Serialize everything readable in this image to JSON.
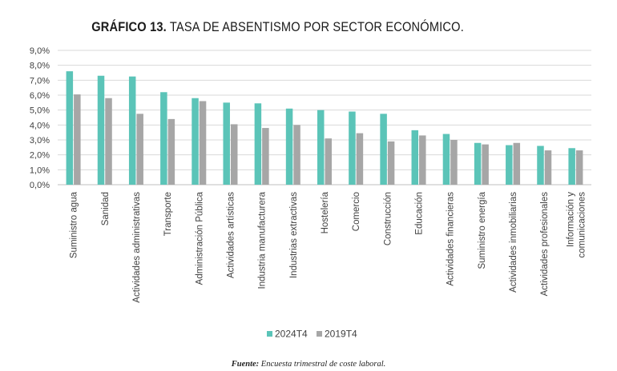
{
  "title_bold": "GRÁFICO 13.",
  "title_rest": "TASA DE ABSENTISMO POR SECTOR ECONÓMICO.",
  "source_label": "Fuente:",
  "source_text": "Encuesta trimestral de coste laboral.",
  "chart_data": {
    "type": "bar",
    "title": "GRÁFICO 13. TASA DE ABSENTISMO POR SECTOR ECONÓMICO.",
    "xlabel": "",
    "ylabel": "",
    "ylim": [
      0,
      9
    ],
    "y_ticks": [
      "0,0%",
      "1,0%",
      "2,0%",
      "3,0%",
      "4,0%",
      "5,0%",
      "6,0%",
      "7,0%",
      "8,0%",
      "9,0%"
    ],
    "grid": true,
    "legend_position": "bottom",
    "categories": [
      "Suministro agua",
      "Sanidad",
      "Actividades administrativas",
      "Transporte",
      "Administración Pública",
      "Actividades artísticas",
      "Industria manufacturera",
      "Industrias extractivas",
      "Hostelería",
      "Comercio",
      "Construcción",
      "Educación",
      "Actividades financieras",
      "Suministro energía",
      "Actividades inmobiliarias",
      "Actividades profesionales",
      "Información y comunicaciones"
    ],
    "series": [
      {
        "name": "2024T4",
        "color": "#5bc4b8",
        "values": [
          7.6,
          7.3,
          7.25,
          6.2,
          5.8,
          5.5,
          5.45,
          5.1,
          5.0,
          4.9,
          4.75,
          3.65,
          3.4,
          2.8,
          2.65,
          2.6,
          2.45
        ]
      },
      {
        "name": "2019T4",
        "color": "#a6a6a6",
        "values": [
          6.05,
          5.8,
          4.75,
          4.4,
          5.6,
          4.05,
          3.8,
          4.0,
          3.1,
          3.45,
          2.9,
          3.3,
          3.0,
          2.7,
          2.8,
          2.3,
          2.3
        ]
      }
    ]
  }
}
